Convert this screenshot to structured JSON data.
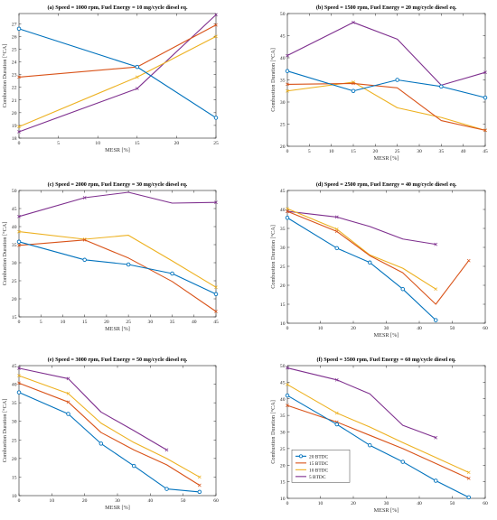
{
  "colors": {
    "s20": "#0072BD",
    "s15": "#D95319",
    "s10": "#EDB120",
    "s5": "#7E2F8E"
  },
  "legend": [
    "20 BTDC",
    "15 BTDC",
    "10 BTDC",
    "5 BTDC"
  ],
  "chart_data": [
    {
      "type": "line",
      "title": "(a) Speed = 1000 rpm, Fuel Energy = 10 mg/cycle diesel eq.",
      "xlabel": "MESR [%]",
      "ylabel": "Combustion Duration [°CA]",
      "xlim": [
        0,
        25
      ],
      "ylim": [
        18,
        27.8
      ],
      "xticks": [
        0,
        5,
        10,
        15,
        20,
        25
      ],
      "yticks": [
        18,
        19,
        20,
        21,
        22,
        23,
        24,
        25,
        26,
        27
      ],
      "series": [
        {
          "name": "20 BTDC",
          "x": [
            0,
            15,
            25
          ],
          "y": [
            26.6,
            23.6,
            19.6
          ]
        },
        {
          "name": "15 BTDC",
          "x": [
            0,
            15,
            25
          ],
          "y": [
            22.8,
            23.6,
            26.9
          ]
        },
        {
          "name": "10 BTDC",
          "x": [
            0,
            15,
            25
          ],
          "y": [
            18.9,
            22.8,
            26.0
          ]
        },
        {
          "name": "5 BTDC",
          "x": [
            0,
            15,
            25
          ],
          "y": [
            18.5,
            21.9,
            27.7
          ]
        }
      ]
    },
    {
      "type": "line",
      "title": "(b) Speed = 1500 rpm, Fuel Energy = 20 mg/cycle diesel eq.",
      "xlabel": "MESR [%]",
      "ylabel": "Combustion Duration [°CA]",
      "xlim": [
        0,
        45
      ],
      "ylim": [
        20,
        50
      ],
      "xticks": [
        0,
        5,
        10,
        15,
        20,
        25,
        30,
        35,
        40,
        45
      ],
      "yticks": [
        20,
        25,
        30,
        35,
        40,
        45,
        50
      ],
      "series": [
        {
          "name": "20 BTDC",
          "x": [
            0,
            15,
            25,
            35,
            45
          ],
          "y": [
            37.0,
            32.5,
            35.0,
            33.5,
            31.0
          ]
        },
        {
          "name": "15 BTDC",
          "x": [
            0,
            15,
            25,
            35,
            45
          ],
          "y": [
            34.0,
            34.2,
            33.2,
            25.8,
            23.6
          ]
        },
        {
          "name": "10 BTDC",
          "x": [
            0,
            15,
            25,
            35,
            45
          ],
          "y": [
            32.5,
            34.5,
            28.7,
            26.5,
            23.6
          ]
        },
        {
          "name": "5 BTDC",
          "x": [
            0,
            15,
            25,
            35,
            45
          ],
          "y": [
            40.5,
            48.0,
            44.2,
            33.8,
            36.7
          ]
        }
      ]
    },
    {
      "type": "line",
      "title": "(c) Speed = 2000 rpm, Fuel Energy = 30 mg/cycle diesel eq.",
      "xlabel": "MESR [%]",
      "ylabel": "Combustion Duration [°CA]",
      "xlim": [
        0,
        45
      ],
      "ylim": [
        15,
        50
      ],
      "xticks": [
        0,
        5,
        10,
        15,
        20,
        25,
        30,
        35,
        40,
        45
      ],
      "yticks": [
        15,
        20,
        25,
        30,
        35,
        40,
        45,
        50
      ],
      "series": [
        {
          "name": "20 BTDC",
          "x": [
            0,
            15,
            25,
            35,
            45
          ],
          "y": [
            35.8,
            30.8,
            29.5,
            27.0,
            21.3
          ]
        },
        {
          "name": "15 BTDC",
          "x": [
            0,
            15,
            25,
            35,
            45
          ],
          "y": [
            34.8,
            36.3,
            31.3,
            24.8,
            16.5
          ]
        },
        {
          "name": "10 BTDC",
          "x": [
            0,
            15,
            25,
            35,
            45
          ],
          "y": [
            38.6,
            36.5,
            37.6,
            30.5,
            23.2
          ]
        },
        {
          "name": "5 BTDC",
          "x": [
            0,
            15,
            25,
            35,
            45
          ],
          "y": [
            42.8,
            48.0,
            49.5,
            46.5,
            46.7
          ]
        }
      ]
    },
    {
      "type": "line",
      "title": "(d) Speed = 2500 rpm, Fuel Energy = 40 mg/cycle diesel eq.",
      "xlabel": "MESR [%]",
      "ylabel": "Combustion Duration [°CA]",
      "xlim": [
        0,
        60
      ],
      "ylim": [
        10,
        45
      ],
      "xticks": [
        0,
        10,
        20,
        30,
        40,
        50,
        60
      ],
      "yticks": [
        10,
        15,
        20,
        25,
        30,
        35,
        40,
        45
      ],
      "series": [
        {
          "name": "20 BTDC",
          "x": [
            0,
            15,
            25,
            35,
            45
          ],
          "y": [
            37.8,
            29.8,
            26.0,
            19.0,
            10.8
          ]
        },
        {
          "name": "15 BTDC",
          "x": [
            0,
            15,
            25,
            35,
            45,
            55
          ],
          "y": [
            39.5,
            34.2,
            27.8,
            23.3,
            15.0,
            26.5
          ]
        },
        {
          "name": "10 BTDC",
          "x": [
            0,
            15,
            25,
            35,
            45
          ],
          "y": [
            40.2,
            34.8,
            28.0,
            24.5,
            19.0
          ]
        },
        {
          "name": "5 BTDC",
          "x": [
            0,
            15,
            25,
            35,
            45
          ],
          "y": [
            39.5,
            38.0,
            35.5,
            32.2,
            30.8
          ]
        }
      ]
    },
    {
      "type": "line",
      "title": "(e) Speed = 3000 rpm, Fuel Energy = 50 mg/cycle diesel eq.",
      "xlabel": "MESR [%]",
      "ylabel": "Combustion Duration [°CA]",
      "xlim": [
        0,
        60
      ],
      "ylim": [
        10,
        45
      ],
      "xticks": [
        0,
        10,
        20,
        30,
        40,
        50,
        60
      ],
      "yticks": [
        10,
        15,
        20,
        25,
        30,
        35,
        40,
        45
      ],
      "series": [
        {
          "name": "20 BTDC",
          "x": [
            0,
            15,
            25,
            35,
            45,
            55
          ],
          "y": [
            37.8,
            32.0,
            24.0,
            18.0,
            11.8,
            11.0
          ]
        },
        {
          "name": "15 BTDC",
          "x": [
            0,
            15,
            25,
            35,
            45,
            55
          ],
          "y": [
            40.3,
            35.2,
            27.0,
            22.3,
            18.3,
            12.8
          ]
        },
        {
          "name": "10 BTDC",
          "x": [
            0,
            15,
            25,
            35,
            45,
            55
          ],
          "y": [
            42.3,
            37.5,
            29.5,
            24.3,
            20.0,
            15.0
          ]
        },
        {
          "name": "5 BTDC",
          "x": [
            0,
            15,
            25,
            35,
            45
          ],
          "y": [
            44.3,
            41.5,
            32.5,
            27.5,
            22.3
          ]
        }
      ]
    },
    {
      "type": "line",
      "title": "(f) Speed = 3500 rpm, Fuel Energy = 60 mg/cycle diesel eq.",
      "xlabel": "MESR [%]",
      "ylabel": "Combustion Duration [°CA]",
      "xlim": [
        0,
        60
      ],
      "ylim": [
        10,
        50
      ],
      "xticks": [
        0,
        10,
        20,
        30,
        40,
        50,
        60
      ],
      "yticks": [
        10,
        15,
        20,
        25,
        30,
        35,
        40,
        45,
        50
      ],
      "legend_position": "bottom-left",
      "series": [
        {
          "name": "20 BTDC",
          "x": [
            0,
            15,
            25,
            35,
            45,
            55
          ],
          "y": [
            41.0,
            32.3,
            26.0,
            21.0,
            15.3,
            10.3
          ]
        },
        {
          "name": "15 BTDC",
          "x": [
            0,
            15,
            25,
            35,
            45,
            55
          ],
          "y": [
            38.0,
            33.0,
            29.0,
            25.0,
            20.5,
            16.0
          ]
        },
        {
          "name": "10 BTDC",
          "x": [
            0,
            15,
            25,
            35,
            45,
            55
          ],
          "y": [
            44.3,
            35.7,
            31.5,
            26.8,
            22.3,
            17.8
          ]
        },
        {
          "name": "5 BTDC",
          "x": [
            0,
            15,
            25,
            35,
            45
          ],
          "y": [
            49.3,
            45.7,
            41.5,
            32.0,
            28.3
          ]
        }
      ]
    }
  ]
}
